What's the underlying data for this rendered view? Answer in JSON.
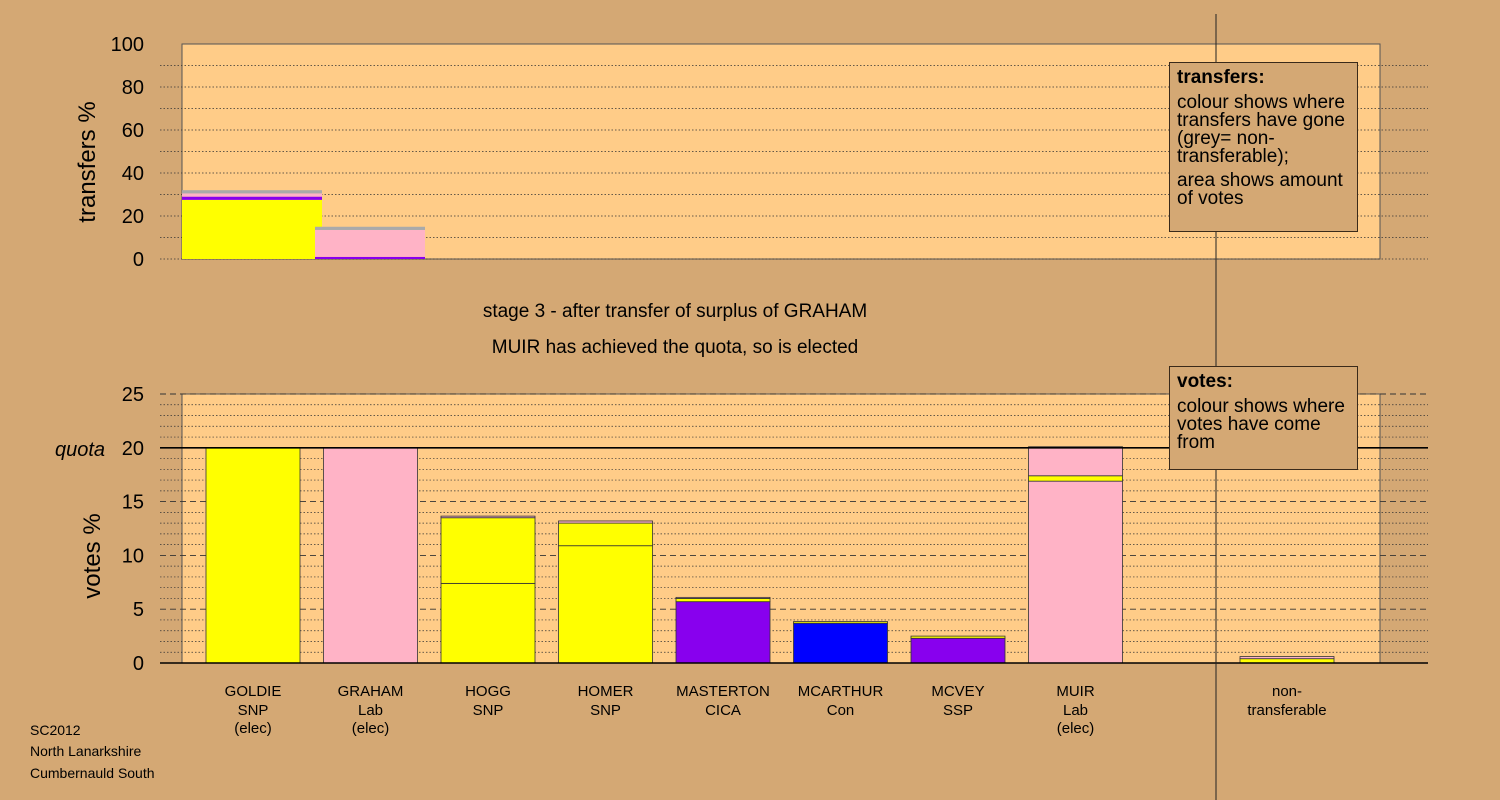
{
  "headings": {
    "stage": "stage 3 - after transfer of surplus of GRAHAM",
    "elected": "MUIR has achieved the quota, so is elected"
  },
  "footer": {
    "line1": "SC2012",
    "line2": "North Lanarkshire",
    "line3": "Cumbernauld South"
  },
  "legends": {
    "transfers": {
      "title": "transfers:",
      "text1": "colour shows where transfers have gone (grey= non-transferable);",
      "text2": "area shows amount of votes"
    },
    "votes": {
      "title": "votes:",
      "text1": "colour shows where votes have come from"
    }
  },
  "colors": {
    "background": "#d4a874",
    "plot_background": "#ffcc88",
    "SNP": "#ffff00",
    "Lab": "#ffb3c6",
    "CICA": "#8800ee",
    "Con": "#0000ff",
    "SSP": "#8800ee",
    "non_transferable": "#aaaaaa"
  },
  "chart_data": [
    {
      "type": "bar",
      "ylabel": "transfers %",
      "ylim": [
        0,
        100
      ],
      "yticks": [
        0,
        20,
        40,
        60,
        80,
        100
      ],
      "bars": [
        {
          "source": "GOLDIE",
          "segments": [
            {
              "to": "SNP",
              "value": 27.5,
              "color": "#ffff00"
            },
            {
              "to": "CICA",
              "value": 1.5,
              "color": "#8800ee"
            },
            {
              "to": "Lab",
              "value": 1.5,
              "color": "#ffb3c6"
            },
            {
              "to": "non-transferable",
              "value": 1.5,
              "color": "#aaaaaa"
            }
          ]
        },
        {
          "source": "GRAHAM",
          "segments": [
            {
              "to": "CICA",
              "value": 1.0,
              "color": "#8800ee"
            },
            {
              "to": "Lab",
              "value": 12.5,
              "color": "#ffb3c6"
            },
            {
              "to": "non-transferable",
              "value": 1.5,
              "color": "#aaaaaa"
            }
          ]
        }
      ]
    },
    {
      "type": "bar",
      "ylabel": "votes %",
      "ylim": [
        0,
        25
      ],
      "yticks": [
        0,
        5,
        10,
        15,
        20,
        25
      ],
      "quota": 20,
      "quota_label": "quota",
      "categories": [
        {
          "name": "GOLDIE",
          "party": "SNP",
          "status": "(elec)",
          "color": "#ffff00",
          "segments": [
            20.0
          ]
        },
        {
          "name": "GRAHAM",
          "party": "Lab",
          "status": "(elec)",
          "color": "#ffb3c6",
          "segments": [
            20.0
          ]
        },
        {
          "name": "HOGG",
          "party": "SNP",
          "status": "",
          "color": "#ffff00",
          "segments": [
            7.4,
            6.1,
            0.15
          ]
        },
        {
          "name": "HOMER",
          "party": "SNP",
          "status": "",
          "color": "#ffff00",
          "segments": [
            10.9,
            2.1,
            0.2
          ]
        },
        {
          "name": "MASTERTON",
          "party": "CICA",
          "status": "",
          "color": "#8800ee",
          "segments": [
            5.7,
            0.3,
            0.1
          ]
        },
        {
          "name": "MCARTHUR",
          "party": "Con",
          "status": "",
          "color": "#0000ff",
          "segments": [
            3.7,
            0.15
          ]
        },
        {
          "name": "MCVEY",
          "party": "SSP",
          "status": "",
          "color": "#8800ee",
          "segments": [
            2.3,
            0.2
          ]
        },
        {
          "name": "MUIR",
          "party": "Lab",
          "status": "(elec)",
          "color": "#ffb3c6",
          "segments": [
            16.9,
            0.5,
            2.7
          ]
        },
        {
          "name": "non-",
          "party": "transferable",
          "status": "",
          "color": "#aaaaaa",
          "segments": [
            0.4,
            0.2
          ]
        }
      ],
      "segment_colors": {
        "HOGG": [
          "#ffff00",
          "#ffff00",
          "#ffb3c6"
        ],
        "HOMER": [
          "#ffff00",
          "#ffff00",
          "#ffb3c6"
        ],
        "MASTERTON": [
          "#8800ee",
          "#ffff00",
          "#ffb3c6"
        ],
        "MCARTHUR": [
          "#0000ff",
          "#ffff00"
        ],
        "MCVEY": [
          "#8800ee",
          "#ffff00"
        ],
        "MUIR": [
          "#ffb3c6",
          "#ffff00",
          "#ffb3c6"
        ],
        "non-": [
          "#ffff00",
          "#ffb3c6"
        ]
      }
    }
  ]
}
